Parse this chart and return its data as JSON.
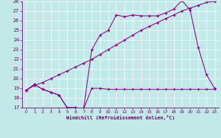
{
  "xlabel": "Windchill (Refroidissement éolien,°C)",
  "xlim": [
    -0.5,
    23.5
  ],
  "ylim": [
    17,
    28
  ],
  "xticks": [
    0,
    1,
    2,
    3,
    4,
    5,
    6,
    7,
    8,
    9,
    10,
    11,
    12,
    13,
    14,
    15,
    16,
    17,
    18,
    19,
    20,
    21,
    22,
    23
  ],
  "yticks": [
    17,
    18,
    19,
    20,
    21,
    22,
    23,
    24,
    25,
    26,
    27,
    28
  ],
  "bg_color": "#c2e8e8",
  "line_color": "#880088",
  "line1_x": [
    0,
    1,
    2,
    3,
    4,
    5,
    6,
    7,
    8,
    9,
    10,
    11,
    12,
    13,
    14,
    15,
    16,
    17,
    18,
    19,
    20,
    21,
    22,
    23
  ],
  "line1_y": [
    18.8,
    19.4,
    18.9,
    18.6,
    18.3,
    17.0,
    17.0,
    16.85,
    19.0,
    19.0,
    18.9,
    18.9,
    18.9,
    18.9,
    18.9,
    18.9,
    18.9,
    18.9,
    18.9,
    18.9,
    18.9,
    18.9,
    18.9,
    18.9
  ],
  "line2_x": [
    0,
    1,
    2,
    3,
    4,
    5,
    6,
    7,
    8,
    9,
    10,
    11,
    12,
    13,
    14,
    15,
    16,
    17,
    18,
    19,
    20,
    21,
    22,
    23
  ],
  "line2_y": [
    18.8,
    19.4,
    18.9,
    18.6,
    18.3,
    17.0,
    17.0,
    16.85,
    23.0,
    24.5,
    25.0,
    26.6,
    26.4,
    26.6,
    26.5,
    26.5,
    26.5,
    26.8,
    27.2,
    28.1,
    27.1,
    23.2,
    20.4,
    19.0
  ],
  "line3_x": [
    0,
    1,
    2,
    3,
    4,
    5,
    6,
    7,
    8,
    9,
    10,
    11,
    12,
    13,
    14,
    15,
    16,
    17,
    18,
    19,
    20,
    21,
    22,
    23
  ],
  "line3_y": [
    18.8,
    19.3,
    19.6,
    20.0,
    20.4,
    20.8,
    21.2,
    21.6,
    22.0,
    22.5,
    23.0,
    23.5,
    24.0,
    24.5,
    25.0,
    25.4,
    25.8,
    26.2,
    26.6,
    27.0,
    27.3,
    27.6,
    27.9,
    28.0
  ],
  "font_color": "#660066",
  "grid_color": "#b0d4d4"
}
